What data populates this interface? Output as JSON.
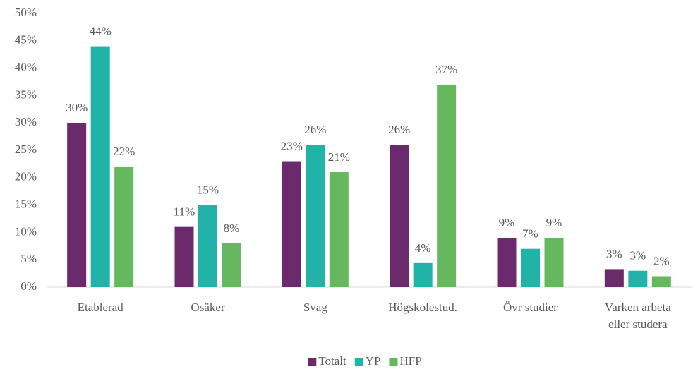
{
  "chart_data": {
    "type": "bar",
    "categories": [
      "Etablerad",
      "Osäker",
      "Svag",
      "Högskolestud.",
      "Övr studier",
      "Varken arbeta eller studera"
    ],
    "series": [
      {
        "name": "Totalt",
        "color": "#6b2a6b",
        "values": [
          30,
          11,
          23,
          26,
          9,
          3.3
        ],
        "value_labels": [
          "30%",
          "11%",
          "23%",
          "26%",
          "9%",
          "3%"
        ]
      },
      {
        "name": "YP",
        "color": "#21b3a8",
        "values": [
          44,
          15,
          26,
          4.4,
          7,
          3
        ],
        "value_labels": [
          "44%",
          "15%",
          "26%",
          "4%",
          "7%",
          "3%"
        ]
      },
      {
        "name": "HFP",
        "color": "#66b85f",
        "values": [
          22,
          8,
          21,
          37,
          9,
          2
        ],
        "value_labels": [
          "22%",
          "8%",
          "21%",
          "37%",
          "9%",
          "2%"
        ]
      }
    ],
    "ylim": [
      0,
      50
    ],
    "yticks": [
      {
        "value": 0,
        "label": "0%"
      },
      {
        "value": 5,
        "label": "5%"
      },
      {
        "value": 10,
        "label": "10%"
      },
      {
        "value": 15,
        "label": "15%"
      },
      {
        "value": 20,
        "label": "20%"
      },
      {
        "value": 25,
        "label": "25%"
      },
      {
        "value": 30,
        "label": "30%"
      },
      {
        "value": 35,
        "label": "35%"
      },
      {
        "value": 40,
        "label": "40%"
      },
      {
        "value": 45,
        "label": "45%"
      },
      {
        "value": 50,
        "label": "50%"
      }
    ],
    "grid": false,
    "legend": "bottom"
  }
}
